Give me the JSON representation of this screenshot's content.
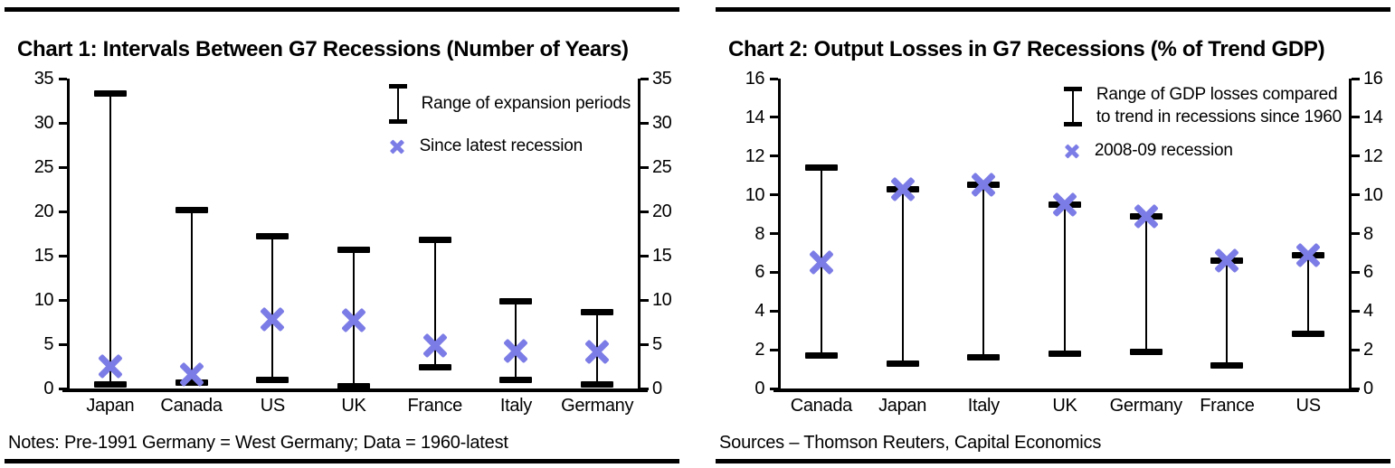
{
  "colors": {
    "background": "#ffffff",
    "line": "#000000",
    "marker": "#7c7ce6"
  },
  "chart_data": [
    {
      "type": "scatter",
      "subtype": "range-whiskers-with-markers",
      "title": "Chart 1: Intervals Between G7 Recessions (Number of Years)",
      "footer": "Notes: Pre-1991 Germany = West Germany; Data = 1960-latest",
      "xlabel": "",
      "ylabel": "",
      "ylim": [
        0,
        35
      ],
      "yticks": [
        0,
        5,
        10,
        15,
        20,
        25,
        30,
        35
      ],
      "axis_sides": "left-and-right",
      "grid": false,
      "legend_position": "top-right-inside",
      "legend": [
        {
          "symbol": "range-bar-icon",
          "label": "Range of expansion periods"
        },
        {
          "symbol": "x-marker-icon",
          "label": "Since latest recession"
        }
      ],
      "categories": [
        "Japan",
        "Canada",
        "US",
        "UK",
        "France",
        "Italy",
        "Germany"
      ],
      "series": [
        {
          "name": "Range of expansion periods",
          "type": "range",
          "low": [
            0.5,
            0.7,
            1.0,
            0.3,
            2.4,
            1.0,
            0.5
          ],
          "high": [
            33.3,
            20.2,
            17.2,
            15.7,
            16.8,
            9.8,
            8.6
          ]
        },
        {
          "name": "Since latest recession",
          "type": "x-marker",
          "values": [
            2.5,
            1.6,
            7.8,
            7.7,
            4.8,
            4.2,
            4.1
          ]
        }
      ]
    },
    {
      "type": "scatter",
      "subtype": "range-whiskers-with-markers",
      "title": "Chart 2: Output Losses in G7 Recessions (% of Trend GDP)",
      "footer": "Sources – Thomson Reuters, Capital Economics",
      "xlabel": "",
      "ylabel": "",
      "ylim": [
        0,
        16
      ],
      "yticks": [
        0,
        2,
        4,
        6,
        8,
        10,
        12,
        14,
        16
      ],
      "axis_sides": "left-and-right",
      "grid": false,
      "legend_position": "top-right-inside",
      "legend": [
        {
          "symbol": "range-bar-icon",
          "label": "Range of GDP losses compared\nto trend in recessions since 1960"
        },
        {
          "symbol": "x-marker-icon",
          "label": "2008-09 recession"
        }
      ],
      "categories": [
        "Canada",
        "Japan",
        "Italy",
        "UK",
        "Germany",
        "France",
        "US"
      ],
      "series": [
        {
          "name": "Range of GDP losses compared to trend in recessions since 1960",
          "type": "range",
          "low": [
            1.7,
            1.3,
            1.6,
            1.8,
            1.9,
            1.2,
            2.8
          ],
          "high": [
            11.4,
            10.3,
            10.5,
            9.5,
            8.9,
            6.6,
            6.9
          ]
        },
        {
          "name": "2008-09 recession",
          "type": "x-marker",
          "values": [
            6.5,
            10.3,
            10.5,
            9.5,
            8.9,
            6.6,
            6.9
          ]
        }
      ]
    }
  ]
}
